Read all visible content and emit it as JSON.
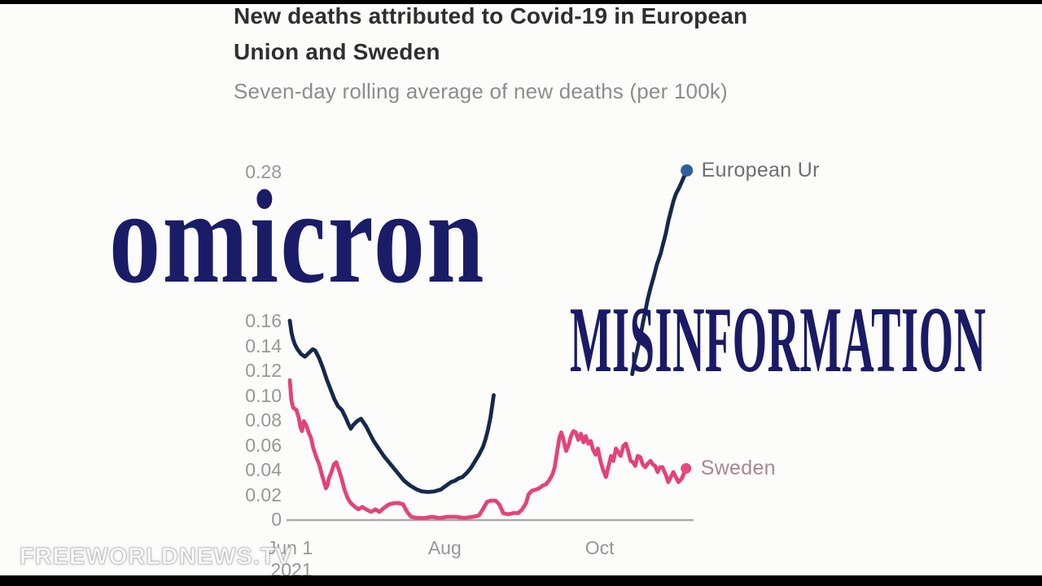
{
  "header": {
    "title_line1": "New deaths attributed to Covid-19 in European",
    "title_line2": "Union and Sweden",
    "subtitle": "Seven-day rolling average of new deaths (per 100k)"
  },
  "overlays": {
    "omicron": "omicron",
    "misinformation": "MISINFORMATION"
  },
  "watermark": "FREEWORLDNEWS.TV",
  "colors": {
    "background": "#fcfcfb",
    "title": "#2f2f2f",
    "subtitle": "#8d8d8d",
    "tick_text": "#979797",
    "axis_line": "#ababab",
    "overlay_navy": "#1a1a66",
    "letterbox": "#000000"
  },
  "chart_data": {
    "type": "line",
    "title": "New deaths attributed to Covid-19 in European Union and Sweden",
    "subtitle": "Seven-day rolling average of new deaths (per 100k)",
    "grid": "off",
    "legend_position": "line-end-labels",
    "x_unit": "days since Jun 1 2021",
    "x_axis": {
      "day_min": -1.3,
      "day_max": 159
    },
    "ylim": [
      0,
      0.3
    ],
    "y_ticks": [
      {
        "v": 0.28,
        "label": "0.28"
      },
      {
        "v": 0.16,
        "label": "0.16"
      },
      {
        "v": 0.14,
        "label": "0.14"
      },
      {
        "v": 0.12,
        "label": "0.12"
      },
      {
        "v": 0.1,
        "label": "0.10"
      },
      {
        "v": 0.08,
        "label": "0.08"
      },
      {
        "v": 0.06,
        "label": "0.06"
      },
      {
        "v": 0.04,
        "label": "0.04"
      },
      {
        "v": 0.02,
        "label": "0.02"
      },
      {
        "v": 0,
        "label": "0"
      }
    ],
    "x_ticks": [
      {
        "day": 0,
        "label": "Jun 1",
        "label2": "2021"
      },
      {
        "day": 61,
        "label": "Aug"
      },
      {
        "day": 122,
        "label": "Oct"
      }
    ],
    "series": [
      {
        "name": "European Union",
        "label": "European Ur",
        "color": "#16294a",
        "dot_color": "#2d5f9c",
        "label_color": "#6f6f6f",
        "end_dot": {
          "d": 156.3,
          "v": 0.281,
          "r": 7.5
        },
        "segments": [
          [
            [
              0,
              0.16
            ],
            [
              0.7,
              0.15
            ],
            [
              1.3,
              0.145
            ],
            [
              2,
              0.141
            ],
            [
              3,
              0.137
            ],
            [
              4.5,
              0.133
            ],
            [
              6,
              0.131
            ],
            [
              7.5,
              0.134
            ],
            [
              9,
              0.137
            ],
            [
              10,
              0.136
            ],
            [
              11.5,
              0.13
            ],
            [
              13,
              0.122
            ],
            [
              14.5,
              0.113
            ],
            [
              16,
              0.105
            ],
            [
              17.5,
              0.097
            ],
            [
              19,
              0.091
            ],
            [
              20.5,
              0.088
            ],
            [
              22,
              0.082
            ],
            [
              23,
              0.077
            ],
            [
              24,
              0.073
            ],
            [
              25,
              0.076
            ],
            [
              26.5,
              0.079
            ],
            [
              28,
              0.081
            ],
            [
              29,
              0.078
            ],
            [
              30,
              0.075
            ],
            [
              31.5,
              0.069
            ],
            [
              33,
              0.063
            ],
            [
              35,
              0.057
            ],
            [
              37,
              0.051
            ],
            [
              39,
              0.046
            ],
            [
              41,
              0.041
            ],
            [
              43,
              0.036
            ],
            [
              45,
              0.031
            ],
            [
              47.5,
              0.027
            ],
            [
              50,
              0.024
            ],
            [
              52,
              0.0225
            ],
            [
              54.5,
              0.022
            ],
            [
              57,
              0.0225
            ],
            [
              59.5,
              0.024
            ],
            [
              61.5,
              0.027
            ],
            [
              63.5,
              0.03
            ],
            [
              65,
              0.031
            ],
            [
              66.5,
              0.033
            ],
            [
              68,
              0.034
            ],
            [
              70,
              0.038
            ],
            [
              71.5,
              0.042
            ],
            [
              73,
              0.047
            ],
            [
              74.5,
              0.052
            ],
            [
              76,
              0.058
            ],
            [
              77,
              0.064
            ],
            [
              78,
              0.072
            ],
            [
              79,
              0.082
            ],
            [
              80.3,
              0.1
            ]
          ],
          [
            [
              134.8,
              0.117
            ],
            [
              135.5,
              0.125
            ],
            [
              137,
              0.138
            ],
            [
              138,
              0.147
            ],
            [
              139,
              0.158
            ],
            [
              140,
              0.168
            ],
            [
              141,
              0.178
            ],
            [
              142,
              0.186
            ],
            [
              143.5,
              0.197
            ],
            [
              144.5,
              0.205
            ],
            [
              146,
              0.214
            ],
            [
              147,
              0.222
            ],
            [
              148,
              0.23
            ],
            [
              149,
              0.24
            ],
            [
              150,
              0.248
            ],
            [
              151,
              0.256
            ],
            [
              152,
              0.262
            ],
            [
              153.5,
              0.268
            ],
            [
              155,
              0.275
            ],
            [
              156.3,
              0.281
            ]
          ]
        ]
      },
      {
        "name": "Sweden",
        "label": "Sweden",
        "color": "#e34379",
        "dot_color": "#e84880",
        "label_color": "#aa8791",
        "end_dot": {
          "d": 156,
          "v": 0.041,
          "r": 6.5
        },
        "segments": [
          [
            [
              0,
              0.112
            ],
            [
              0.6,
              0.096
            ],
            [
              1.3,
              0.09
            ],
            [
              2.6,
              0.088
            ],
            [
              3.5,
              0.082
            ],
            [
              4.2,
              0.074
            ],
            [
              4.8,
              0.071
            ],
            [
              5.5,
              0.079
            ],
            [
              6.4,
              0.076
            ],
            [
              7.4,
              0.07
            ],
            [
              8.3,
              0.066
            ],
            [
              9.3,
              0.057
            ],
            [
              10.6,
              0.049
            ],
            [
              11.6,
              0.044
            ],
            [
              12.5,
              0.037
            ],
            [
              13.5,
              0.03
            ],
            [
              14.2,
              0.025
            ],
            [
              14.8,
              0.027
            ],
            [
              15.4,
              0.033
            ],
            [
              16.4,
              0.038
            ],
            [
              17.3,
              0.044
            ],
            [
              18.3,
              0.046
            ],
            [
              19.6,
              0.038
            ],
            [
              20.5,
              0.032
            ],
            [
              21.5,
              0.024
            ],
            [
              22.8,
              0.017
            ],
            [
              24,
              0.013
            ],
            [
              25.7,
              0.01
            ],
            [
              27,
              0.008
            ],
            [
              28.6,
              0.01
            ],
            [
              30,
              0.008
            ],
            [
              32,
              0.006
            ],
            [
              33.7,
              0.008
            ],
            [
              35.3,
              0.006
            ],
            [
              37,
              0.009
            ],
            [
              39,
              0.012
            ],
            [
              41,
              0.013
            ],
            [
              43,
              0.013
            ],
            [
              44.6,
              0.012
            ],
            [
              46.2,
              0.006
            ],
            [
              47.8,
              0.002
            ],
            [
              50,
              0.001
            ],
            [
              53,
              0.001
            ],
            [
              56,
              0.002
            ],
            [
              59,
              0.001
            ],
            [
              62,
              0.002
            ],
            [
              65.5,
              0.002
            ],
            [
              68.7,
              0.001
            ],
            [
              72,
              0.002
            ],
            [
              74.5,
              0.003
            ],
            [
              76,
              0.008
            ],
            [
              77.7,
              0.014
            ],
            [
              79.3,
              0.015
            ],
            [
              81,
              0.015
            ],
            [
              82.5,
              0.012
            ],
            [
              84,
              0.005
            ],
            [
              86,
              0.004
            ],
            [
              88,
              0.005
            ],
            [
              90,
              0.005
            ],
            [
              91.5,
              0.008
            ],
            [
              93,
              0.013
            ],
            [
              94,
              0.02
            ],
            [
              95.3,
              0.023
            ],
            [
              97,
              0.024
            ],
            [
              98.2,
              0.025
            ],
            [
              99.5,
              0.027
            ],
            [
              100.8,
              0.028
            ],
            [
              102,
              0.031
            ],
            [
              103.4,
              0.036
            ],
            [
              104.3,
              0.042
            ],
            [
              105.3,
              0.055
            ],
            [
              106.2,
              0.066
            ],
            [
              106.9,
              0.07
            ],
            [
              107.5,
              0.066
            ],
            [
              108.2,
              0.06
            ],
            [
              108.8,
              0.055
            ],
            [
              109.8,
              0.06
            ],
            [
              110.7,
              0.067
            ],
            [
              111.7,
              0.071
            ],
            [
              112.6,
              0.07
            ],
            [
              113.6,
              0.064
            ],
            [
              114.6,
              0.069
            ],
            [
              115.6,
              0.062
            ],
            [
              116.5,
              0.067
            ],
            [
              117.5,
              0.061
            ],
            [
              118.5,
              0.063
            ],
            [
              119.4,
              0.056
            ],
            [
              120.4,
              0.052
            ],
            [
              121.3,
              0.057
            ],
            [
              122.3,
              0.047
            ],
            [
              123.3,
              0.04
            ],
            [
              124.5,
              0.034
            ],
            [
              125.5,
              0.043
            ],
            [
              126.5,
              0.051
            ],
            [
              127.4,
              0.047
            ],
            [
              128.4,
              0.057
            ],
            [
              129.4,
              0.054
            ],
            [
              130.3,
              0.051
            ],
            [
              131.3,
              0.059
            ],
            [
              132.3,
              0.061
            ],
            [
              133.2,
              0.055
            ],
            [
              134.2,
              0.047
            ],
            [
              135.1,
              0.046
            ],
            [
              136,
              0.043
            ],
            [
              137,
              0.051
            ],
            [
              138,
              0.05
            ],
            [
              139,
              0.044
            ],
            [
              140,
              0.042
            ],
            [
              141,
              0.045
            ],
            [
              142,
              0.047
            ],
            [
              143,
              0.044
            ],
            [
              143.8,
              0.043
            ],
            [
              144.8,
              0.038
            ],
            [
              145.7,
              0.042
            ],
            [
              146.7,
              0.042
            ],
            [
              148,
              0.036
            ],
            [
              149,
              0.03
            ],
            [
              150,
              0.034
            ],
            [
              151,
              0.038
            ],
            [
              152,
              0.034
            ],
            [
              153,
              0.03
            ],
            [
              154.4,
              0.033
            ],
            [
              155.4,
              0.038
            ],
            [
              156,
              0.041
            ]
          ]
        ]
      }
    ]
  }
}
